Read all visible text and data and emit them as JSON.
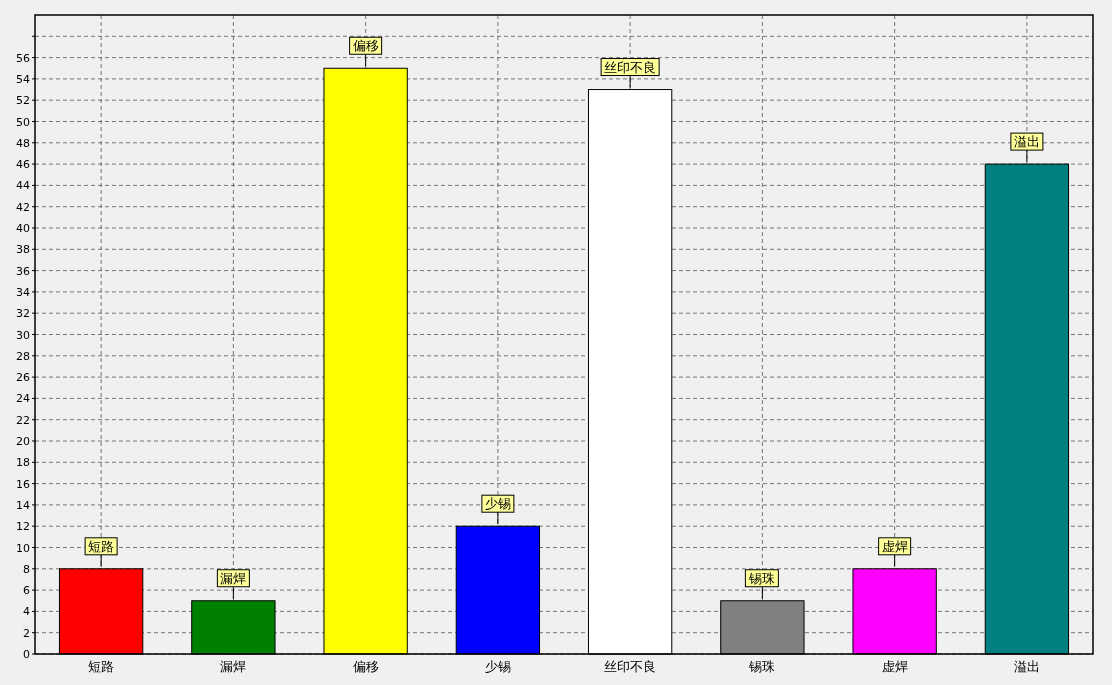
{
  "chart_data": {
    "type": "bar",
    "categories": [
      "短路",
      "漏焊",
      "偏移",
      "少锡",
      "丝印不良",
      "锡珠",
      "虚焊",
      "溢出"
    ],
    "values": [
      8,
      5,
      55,
      12,
      53,
      5,
      8,
      46
    ],
    "colors": [
      "#ff0000",
      "#008000",
      "#ffff00",
      "#0000ff",
      "#ffffff",
      "#808080",
      "#ff00ff",
      "#008080"
    ],
    "value_labels": [
      "短路",
      "漏焊",
      "偏移",
      "少锡",
      "丝印不良",
      "锡珠",
      "虚焊",
      "溢出"
    ],
    "ylim": [
      0,
      60
    ],
    "yticks": [
      0,
      2,
      4,
      6,
      8,
      10,
      12,
      14,
      16,
      18,
      20,
      22,
      24,
      26,
      28,
      30,
      32,
      34,
      36,
      38,
      40,
      42,
      44,
      46,
      48,
      50,
      52,
      54,
      56,
      {
        "value": 58,
        "label": null
      }
    ],
    "grid": true
  }
}
